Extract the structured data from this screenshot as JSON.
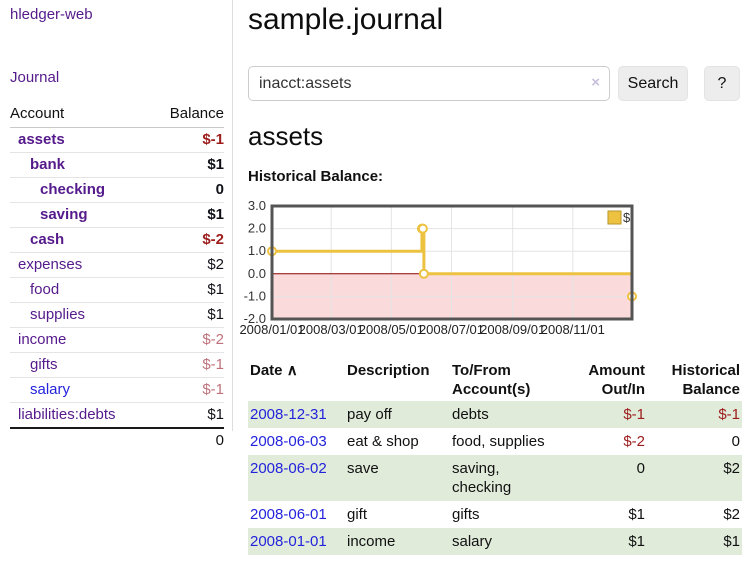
{
  "app": {
    "title": "hledger-web",
    "nav_journal_label": "Journal"
  },
  "colors": {
    "purple": "#551a8b",
    "blue": "#2323dc",
    "negative_strong": "#9d1c1c",
    "negative_muted": "#c0727c",
    "row_green": "#e0ebda"
  },
  "sidebar": {
    "columns": {
      "account": "Account",
      "balance": "Balance"
    },
    "accounts": [
      {
        "name": "assets",
        "depth": 1,
        "bold": true,
        "balance": "$-1",
        "balance_style": "neg-strong"
      },
      {
        "name": "bank",
        "depth": 2,
        "bold": true,
        "balance": "$1",
        "balance_style": "pos"
      },
      {
        "name": "checking",
        "depth": 3,
        "bold": true,
        "balance": "0",
        "balance_style": "pos"
      },
      {
        "name": "saving",
        "depth": 3,
        "bold": true,
        "balance": "$1",
        "balance_style": "pos"
      },
      {
        "name": "cash",
        "depth": 2,
        "bold": true,
        "balance": "$-2",
        "balance_style": "neg-strong"
      },
      {
        "name": "expenses",
        "depth": 1,
        "bold": false,
        "balance": "$2",
        "balance_style": "pos"
      },
      {
        "name": "food",
        "depth": 2,
        "bold": false,
        "balance": "$1",
        "balance_style": "pos"
      },
      {
        "name": "supplies",
        "depth": 2,
        "bold": false,
        "balance": "$1",
        "balance_style": "pos"
      },
      {
        "name": "income",
        "depth": 1,
        "bold": false,
        "balance": "$-2",
        "balance_style": "neg-muted"
      },
      {
        "name": "gifts",
        "depth": 2,
        "bold": false,
        "balance": "$-1",
        "balance_style": "neg-muted"
      },
      {
        "name": "salary",
        "depth": 2,
        "bold": false,
        "balance": "$-1",
        "balance_style": "neg-muted",
        "link_style": "unvisited"
      },
      {
        "name": "liabilities:debts",
        "depth": 1,
        "bold": false,
        "balance": "$1",
        "balance_style": "pos"
      }
    ],
    "total": "0"
  },
  "header": {
    "journal_title": "sample.journal"
  },
  "search": {
    "value": "inacct:assets",
    "clear_icon": "×",
    "button_label": "Search",
    "help_label": "?"
  },
  "account_page": {
    "title": "assets",
    "chart_label": "Historical Balance:"
  },
  "chart_data": {
    "type": "line",
    "title": "Historical Balance",
    "step": true,
    "ylim": [
      -2,
      3
    ],
    "x_domain_days": [
      0,
      365
    ],
    "y_ticks": [
      {
        "label": "3.0",
        "value": 3
      },
      {
        "label": "2.0",
        "value": 2
      },
      {
        "label": "1.0",
        "value": 1
      },
      {
        "label": "0.0",
        "value": 0
      },
      {
        "label": "-1.0",
        "value": -1
      },
      {
        "label": "-2.0",
        "value": -2
      }
    ],
    "x_ticks": [
      {
        "label": "2008/01/01",
        "day": 0
      },
      {
        "label": "2008/03/01",
        "day": 60
      },
      {
        "label": "2008/05/01",
        "day": 121
      },
      {
        "label": "2008/07/01",
        "day": 182
      },
      {
        "label": "2008/09/01",
        "day": 244
      },
      {
        "label": "2008/11/01",
        "day": 305
      }
    ],
    "points": [
      {
        "date": "2008-01-01",
        "day": 0,
        "value": 1
      },
      {
        "date": "2008-06-01",
        "day": 152,
        "value": 2
      },
      {
        "date": "2008-06-02",
        "day": 153,
        "value": 2
      },
      {
        "date": "2008-06-03",
        "day": 154,
        "value": 0
      },
      {
        "date": "2008-12-31",
        "day": 365,
        "value": -1
      }
    ],
    "legend": [
      {
        "label": "$",
        "color": "#edc240"
      }
    ],
    "series_color": "#edc240",
    "negative_region_color": "#fadada",
    "zero_line_color": "#8b0000",
    "grid_color": "#e4e4e4",
    "border_color": "#545454"
  },
  "register": {
    "header": {
      "date": "Date",
      "sort_indicator": "∧",
      "description": "Description",
      "tofrom_line1": "To/From",
      "tofrom_line2": "Account(s)",
      "amount_line1": "Amount",
      "amount_line2": "Out/In",
      "balance_line1": "Historical",
      "balance_line2": "Balance"
    },
    "rows": [
      {
        "date": "2008-12-31",
        "description": "pay off",
        "accounts": "debts",
        "amount": "$-1",
        "amount_style": "neg",
        "balance": "$-1",
        "balance_style": "neg",
        "shaded": true
      },
      {
        "date": "2008-06-03",
        "description": "eat & shop",
        "accounts": "food, supplies",
        "amount": "$-2",
        "amount_style": "neg",
        "balance": "0",
        "balance_style": "pos",
        "shaded": false
      },
      {
        "date": "2008-06-02",
        "description": "save",
        "accounts": "saving, checking",
        "amount": "0",
        "amount_style": "pos",
        "balance": "$2",
        "balance_style": "pos",
        "shaded": true
      },
      {
        "date": "2008-06-01",
        "description": "gift",
        "accounts": "gifts",
        "amount": "$1",
        "amount_style": "pos",
        "balance": "$2",
        "balance_style": "pos",
        "shaded": false
      },
      {
        "date": "2008-01-01",
        "description": "income",
        "accounts": "salary",
        "amount": "$1",
        "amount_style": "pos",
        "balance": "$1",
        "balance_style": "pos",
        "shaded": true
      }
    ]
  }
}
